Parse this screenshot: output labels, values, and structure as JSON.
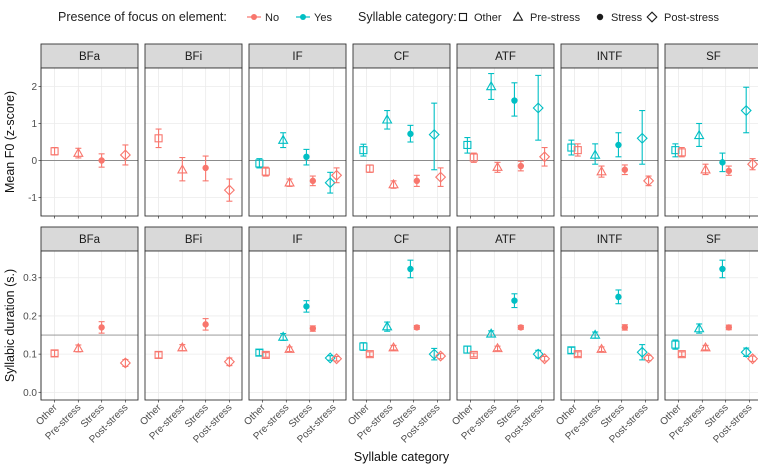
{
  "legend": {
    "focus_title": "Presence of focus on element:",
    "focus_levels": [
      {
        "label": "No",
        "color": "#F8766D"
      },
      {
        "label": "Yes",
        "color": "#00BFC4"
      }
    ],
    "category_title": "Syllable category:",
    "category_levels": [
      {
        "label": "Other",
        "shape": "open-square"
      },
      {
        "label": "Pre-stress",
        "shape": "open-triangle"
      },
      {
        "label": "Stress",
        "shape": "filled-circle"
      },
      {
        "label": "Post-stress",
        "shape": "open-diamond"
      }
    ]
  },
  "chart_data": [
    {
      "type": "scatter",
      "ylabel": "Mean F0 (z-score)",
      "xlabel": "",
      "ylim": [
        -1.5,
        2.5
      ],
      "yticks": [
        -1,
        0,
        1,
        2
      ],
      "grid": true,
      "reference_line": 0,
      "x_categories": [
        "Other",
        "Pre-stress",
        "Stress",
        "Post-stress"
      ],
      "facets": [
        {
          "label": "BFa",
          "points": [
            {
              "category": "Other",
              "focus": "No",
              "y": 0.25,
              "low": 0.15,
              "high": 0.35
            },
            {
              "category": "Pre-stress",
              "focus": "No",
              "y": 0.2,
              "low": 0.07,
              "high": 0.33
            },
            {
              "category": "Stress",
              "focus": "No",
              "y": 0.0,
              "low": -0.18,
              "high": 0.18
            },
            {
              "category": "Post-stress",
              "focus": "No",
              "y": 0.15,
              "low": -0.12,
              "high": 0.42
            }
          ]
        },
        {
          "label": "BFi",
          "points": [
            {
              "category": "Other",
              "focus": "No",
              "y": 0.6,
              "low": 0.35,
              "high": 0.85
            },
            {
              "category": "Pre-stress",
              "focus": "No",
              "y": -0.25,
              "low": -0.55,
              "high": 0.08
            },
            {
              "category": "Stress",
              "focus": "No",
              "y": -0.2,
              "low": -0.55,
              "high": 0.12
            },
            {
              "category": "Post-stress",
              "focus": "No",
              "y": -0.8,
              "low": -1.1,
              "high": -0.5
            }
          ]
        },
        {
          "label": "IF",
          "points": [
            {
              "category": "Other",
              "focus": "Yes",
              "y": -0.08,
              "low": -0.2,
              "high": 0.05
            },
            {
              "category": "Other",
              "focus": "No",
              "y": -0.3,
              "low": -0.42,
              "high": -0.18
            },
            {
              "category": "Pre-stress",
              "focus": "Yes",
              "y": 0.55,
              "low": 0.35,
              "high": 0.75
            },
            {
              "category": "Pre-stress",
              "focus": "No",
              "y": -0.6,
              "low": -0.7,
              "high": -0.5
            },
            {
              "category": "Stress",
              "focus": "Yes",
              "y": 0.1,
              "low": -0.12,
              "high": 0.3
            },
            {
              "category": "Stress",
              "focus": "No",
              "y": -0.55,
              "low": -0.68,
              "high": -0.42
            },
            {
              "category": "Post-stress",
              "focus": "Yes",
              "y": -0.6,
              "low": -0.88,
              "high": -0.32
            },
            {
              "category": "Post-stress",
              "focus": "No",
              "y": -0.4,
              "low": -0.6,
              "high": -0.2
            }
          ]
        },
        {
          "label": "CF",
          "points": [
            {
              "category": "Other",
              "focus": "Yes",
              "y": 0.28,
              "low": 0.12,
              "high": 0.44
            },
            {
              "category": "Other",
              "focus": "No",
              "y": -0.22,
              "low": -0.32,
              "high": -0.12
            },
            {
              "category": "Pre-stress",
              "focus": "Yes",
              "y": 1.1,
              "low": 0.85,
              "high": 1.35
            },
            {
              "category": "Pre-stress",
              "focus": "No",
              "y": -0.65,
              "low": -0.75,
              "high": -0.55
            },
            {
              "category": "Stress",
              "focus": "Yes",
              "y": 0.72,
              "low": 0.5,
              "high": 0.95
            },
            {
              "category": "Stress",
              "focus": "No",
              "y": -0.55,
              "low": -0.7,
              "high": -0.4
            },
            {
              "category": "Post-stress",
              "focus": "Yes",
              "y": 0.7,
              "low": -0.25,
              "high": 1.55
            },
            {
              "category": "Post-stress",
              "focus": "No",
              "y": -0.45,
              "low": -0.7,
              "high": -0.2
            }
          ]
        },
        {
          "label": "ATF",
          "points": [
            {
              "category": "Other",
              "focus": "Yes",
              "y": 0.42,
              "low": 0.2,
              "high": 0.62
            },
            {
              "category": "Other",
              "focus": "No",
              "y": 0.08,
              "low": -0.05,
              "high": 0.2
            },
            {
              "category": "Pre-stress",
              "focus": "Yes",
              "y": 2.0,
              "low": 1.65,
              "high": 2.35
            },
            {
              "category": "Pre-stress",
              "focus": "No",
              "y": -0.18,
              "low": -0.32,
              "high": -0.05
            },
            {
              "category": "Stress",
              "focus": "Yes",
              "y": 1.62,
              "low": 1.2,
              "high": 2.1
            },
            {
              "category": "Stress",
              "focus": "No",
              "y": -0.15,
              "low": -0.28,
              "high": -0.02
            },
            {
              "category": "Post-stress",
              "focus": "Yes",
              "y": 1.42,
              "low": 0.55,
              "high": 2.3
            },
            {
              "category": "Post-stress",
              "focus": "No",
              "y": 0.1,
              "low": -0.15,
              "high": 0.35
            }
          ]
        },
        {
          "label": "INTF",
          "points": [
            {
              "category": "Other",
              "focus": "Yes",
              "y": 0.35,
              "low": 0.15,
              "high": 0.55
            },
            {
              "category": "Other",
              "focus": "No",
              "y": 0.28,
              "low": 0.12,
              "high": 0.45
            },
            {
              "category": "Pre-stress",
              "focus": "Yes",
              "y": 0.15,
              "low": -0.1,
              "high": 0.45
            },
            {
              "category": "Pre-stress",
              "focus": "No",
              "y": -0.3,
              "low": -0.45,
              "high": -0.15
            },
            {
              "category": "Stress",
              "focus": "Yes",
              "y": 0.42,
              "low": 0.1,
              "high": 0.75
            },
            {
              "category": "Stress",
              "focus": "No",
              "y": -0.25,
              "low": -0.38,
              "high": -0.12
            },
            {
              "category": "Post-stress",
              "focus": "Yes",
              "y": 0.6,
              "low": -0.1,
              "high": 1.35
            },
            {
              "category": "Post-stress",
              "focus": "No",
              "y": -0.55,
              "low": -0.68,
              "high": -0.42
            }
          ]
        },
        {
          "label": "SF",
          "points": [
            {
              "category": "Other",
              "focus": "Yes",
              "y": 0.28,
              "low": 0.1,
              "high": 0.45
            },
            {
              "category": "Other",
              "focus": "No",
              "y": 0.22,
              "low": 0.1,
              "high": 0.35
            },
            {
              "category": "Pre-stress",
              "focus": "Yes",
              "y": 0.68,
              "low": 0.38,
              "high": 1.0
            },
            {
              "category": "Pre-stress",
              "focus": "No",
              "y": -0.25,
              "low": -0.38,
              "high": -0.1
            },
            {
              "category": "Stress",
              "focus": "Yes",
              "y": -0.05,
              "low": -0.3,
              "high": 0.2
            },
            {
              "category": "Stress",
              "focus": "No",
              "y": -0.28,
              "low": -0.4,
              "high": -0.15
            },
            {
              "category": "Post-stress",
              "focus": "Yes",
              "y": 1.35,
              "low": 0.75,
              "high": 1.98
            },
            {
              "category": "Post-stress",
              "focus": "No",
              "y": -0.1,
              "low": -0.25,
              "high": 0.05
            }
          ]
        }
      ]
    },
    {
      "type": "scatter",
      "ylabel": "Syllabic duration (s.)",
      "xlabel": "Syllable category",
      "ylim": [
        -0.02,
        0.37
      ],
      "yticks": [
        0.0,
        0.1,
        0.2,
        0.3
      ],
      "ytick_labels": [
        "0.0",
        "0.1",
        "0.2",
        "0.3"
      ],
      "grid": true,
      "reference_line": 0.15,
      "x_categories": [
        "Other",
        "Pre-stress",
        "Stress",
        "Post-stress"
      ],
      "facets": [
        {
          "label": "BFa",
          "points": [
            {
              "category": "Other",
              "focus": "No",
              "y": 0.102,
              "low": 0.094,
              "high": 0.11
            },
            {
              "category": "Pre-stress",
              "focus": "No",
              "y": 0.115,
              "low": 0.106,
              "high": 0.124
            },
            {
              "category": "Stress",
              "focus": "No",
              "y": 0.17,
              "low": 0.155,
              "high": 0.185
            },
            {
              "category": "Post-stress",
              "focus": "No",
              "y": 0.077,
              "low": 0.068,
              "high": 0.086
            }
          ]
        },
        {
          "label": "BFi",
          "points": [
            {
              "category": "Other",
              "focus": "No",
              "y": 0.098,
              "low": 0.09,
              "high": 0.106
            },
            {
              "category": "Pre-stress",
              "focus": "No",
              "y": 0.117,
              "low": 0.109,
              "high": 0.125
            },
            {
              "category": "Stress",
              "focus": "No",
              "y": 0.178,
              "low": 0.163,
              "high": 0.193
            },
            {
              "category": "Post-stress",
              "focus": "No",
              "y": 0.08,
              "low": 0.07,
              "high": 0.09
            }
          ]
        },
        {
          "label": "IF",
          "points": [
            {
              "category": "Other",
              "focus": "Yes",
              "y": 0.104,
              "low": 0.096,
              "high": 0.112
            },
            {
              "category": "Other",
              "focus": "No",
              "y": 0.098,
              "low": 0.092,
              "high": 0.104
            },
            {
              "category": "Pre-stress",
              "focus": "Yes",
              "y": 0.145,
              "low": 0.136,
              "high": 0.154
            },
            {
              "category": "Pre-stress",
              "focus": "No",
              "y": 0.113,
              "low": 0.107,
              "high": 0.119
            },
            {
              "category": "Stress",
              "focus": "Yes",
              "y": 0.225,
              "low": 0.21,
              "high": 0.24
            },
            {
              "category": "Stress",
              "focus": "No",
              "y": 0.167,
              "low": 0.16,
              "high": 0.174
            },
            {
              "category": "Post-stress",
              "focus": "Yes",
              "y": 0.09,
              "low": 0.084,
              "high": 0.096
            },
            {
              "category": "Post-stress",
              "focus": "No",
              "y": 0.088,
              "low": 0.082,
              "high": 0.094
            }
          ]
        },
        {
          "label": "CF",
          "points": [
            {
              "category": "Other",
              "focus": "Yes",
              "y": 0.12,
              "low": 0.11,
              "high": 0.13
            },
            {
              "category": "Other",
              "focus": "No",
              "y": 0.1,
              "low": 0.094,
              "high": 0.106
            },
            {
              "category": "Pre-stress",
              "focus": "Yes",
              "y": 0.172,
              "low": 0.16,
              "high": 0.184
            },
            {
              "category": "Pre-stress",
              "focus": "No",
              "y": 0.117,
              "low": 0.111,
              "high": 0.123
            },
            {
              "category": "Stress",
              "focus": "Yes",
              "y": 0.323,
              "low": 0.3,
              "high": 0.346
            },
            {
              "category": "Stress",
              "focus": "No",
              "y": 0.17,
              "low": 0.165,
              "high": 0.175
            },
            {
              "category": "Post-stress",
              "focus": "Yes",
              "y": 0.1,
              "low": 0.085,
              "high": 0.115
            },
            {
              "category": "Post-stress",
              "focus": "No",
              "y": 0.095,
              "low": 0.088,
              "high": 0.102
            }
          ]
        },
        {
          "label": "ATF",
          "points": [
            {
              "category": "Other",
              "focus": "Yes",
              "y": 0.112,
              "low": 0.103,
              "high": 0.121
            },
            {
              "category": "Other",
              "focus": "No",
              "y": 0.098,
              "low": 0.093,
              "high": 0.103
            },
            {
              "category": "Pre-stress",
              "focus": "Yes",
              "y": 0.153,
              "low": 0.145,
              "high": 0.161
            },
            {
              "category": "Pre-stress",
              "focus": "No",
              "y": 0.115,
              "low": 0.109,
              "high": 0.121
            },
            {
              "category": "Stress",
              "focus": "Yes",
              "y": 0.24,
              "low": 0.222,
              "high": 0.258
            },
            {
              "category": "Stress",
              "focus": "No",
              "y": 0.17,
              "low": 0.165,
              "high": 0.175
            },
            {
              "category": "Post-stress",
              "focus": "Yes",
              "y": 0.1,
              "low": 0.09,
              "high": 0.11
            },
            {
              "category": "Post-stress",
              "focus": "No",
              "y": 0.088,
              "low": 0.082,
              "high": 0.094
            }
          ]
        },
        {
          "label": "INTF",
          "points": [
            {
              "category": "Other",
              "focus": "Yes",
              "y": 0.11,
              "low": 0.102,
              "high": 0.118
            },
            {
              "category": "Other",
              "focus": "No",
              "y": 0.1,
              "low": 0.094,
              "high": 0.106
            },
            {
              "category": "Pre-stress",
              "focus": "Yes",
              "y": 0.15,
              "low": 0.142,
              "high": 0.158
            },
            {
              "category": "Pre-stress",
              "focus": "No",
              "y": 0.113,
              "low": 0.107,
              "high": 0.119
            },
            {
              "category": "Stress",
              "focus": "Yes",
              "y": 0.25,
              "low": 0.232,
              "high": 0.268
            },
            {
              "category": "Stress",
              "focus": "No",
              "y": 0.17,
              "low": 0.163,
              "high": 0.177
            },
            {
              "category": "Post-stress",
              "focus": "Yes",
              "y": 0.105,
              "low": 0.085,
              "high": 0.125
            },
            {
              "category": "Post-stress",
              "focus": "No",
              "y": 0.09,
              "low": 0.083,
              "high": 0.097
            }
          ]
        },
        {
          "label": "SF",
          "points": [
            {
              "category": "Other",
              "focus": "Yes",
              "y": 0.125,
              "low": 0.113,
              "high": 0.137
            },
            {
              "category": "Other",
              "focus": "No",
              "y": 0.1,
              "low": 0.094,
              "high": 0.106
            },
            {
              "category": "Pre-stress",
              "focus": "Yes",
              "y": 0.167,
              "low": 0.155,
              "high": 0.179
            },
            {
              "category": "Pre-stress",
              "focus": "No",
              "y": 0.117,
              "low": 0.111,
              "high": 0.123
            },
            {
              "category": "Stress",
              "focus": "Yes",
              "y": 0.323,
              "low": 0.3,
              "high": 0.346
            },
            {
              "category": "Stress",
              "focus": "No",
              "y": 0.17,
              "low": 0.164,
              "high": 0.176
            },
            {
              "category": "Post-stress",
              "focus": "Yes",
              "y": 0.105,
              "low": 0.094,
              "high": 0.116
            },
            {
              "category": "Post-stress",
              "focus": "No",
              "y": 0.088,
              "low": 0.081,
              "high": 0.095
            }
          ]
        }
      ]
    }
  ]
}
